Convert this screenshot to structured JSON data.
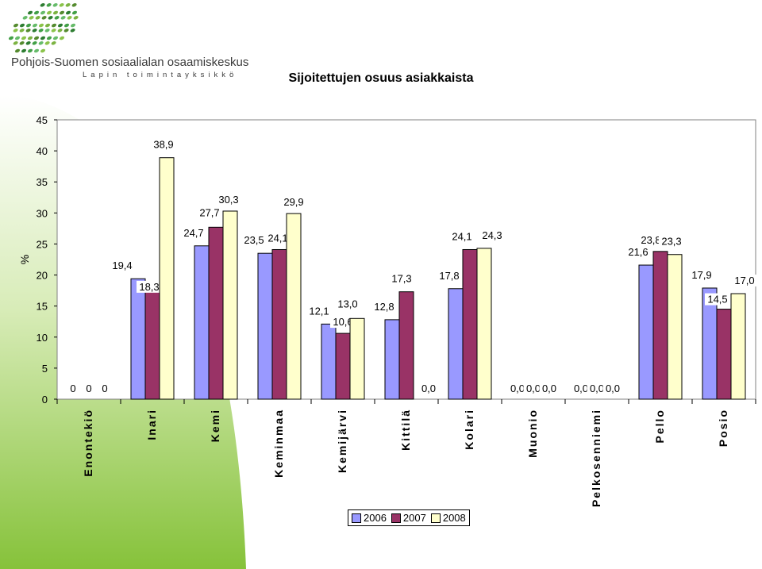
{
  "logo": {
    "name": "Pohjois-Suomen sosiaalialan osaamiskeskus",
    "subtitle": "Lapin toimintayksikkö"
  },
  "colors": {
    "series2006": "#9999FF",
    "series2007": "#993366",
    "series2008": "#FFFFCC",
    "accent_green": "#8DC63F"
  },
  "chart_data": {
    "type": "bar",
    "title": "Sijoitettujen osuus asiakkaista",
    "ylabel": "%",
    "xlabel": "",
    "ylim": [
      0,
      45
    ],
    "yticks": [
      0,
      5,
      10,
      15,
      20,
      25,
      30,
      35,
      40,
      45
    ],
    "categories": [
      "Enontekiö",
      "Inari",
      "Kemi",
      "Keminmaa",
      "Kemijärvi",
      "Kittilä",
      "Kolari",
      "Muonio",
      "Pelkosenniemi",
      "Pello",
      "Posio"
    ],
    "series": [
      {
        "name": "2006",
        "values": [
          0,
          19.4,
          24.7,
          23.5,
          12.1,
          12.8,
          17.8,
          0.0,
          0.0,
          21.6,
          17.9
        ],
        "labels": [
          "0",
          "19,4",
          "24,7",
          "23,5",
          "12,1",
          "12,8",
          "17,8",
          "0,0",
          "0,0",
          "21,6",
          "17,9"
        ]
      },
      {
        "name": "2007",
        "values": [
          0,
          18.3,
          27.7,
          24.1,
          10.6,
          17.3,
          24.1,
          0.0,
          0.0,
          23.8,
          14.5
        ],
        "labels": [
          "0",
          "18,3",
          "27,7",
          "24,1",
          "10,6",
          "17,3",
          "24,1",
          "0,0",
          "0,0",
          "23,8",
          "14,5"
        ]
      },
      {
        "name": "2008",
        "values": [
          0,
          38.9,
          30.3,
          29.9,
          13.0,
          0.0,
          24.3,
          0.0,
          0.0,
          23.3,
          17.0
        ],
        "labels": [
          "0",
          "38,9",
          "30,3",
          "29,9",
          "13,0",
          "0,0",
          "24,3",
          "0,0",
          "0,0",
          "23,3",
          "17,0"
        ]
      }
    ],
    "legend": [
      "2006",
      "2007",
      "2008"
    ],
    "legend_position": "bottom",
    "grid": false
  }
}
